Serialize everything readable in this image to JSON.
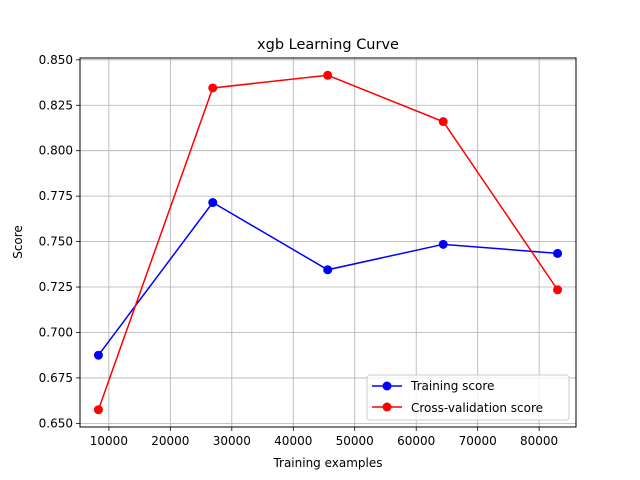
{
  "chart_data": {
    "type": "line",
    "title": "xgb Learning Curve",
    "xlabel": "Training examples",
    "ylabel": "Score",
    "xlim": [
      5300,
      86000
    ],
    "ylim": [
      0.648,
      0.851
    ],
    "x": [
      8300,
      26900,
      45600,
      64400,
      83000
    ],
    "xticks": [
      10000,
      20000,
      30000,
      40000,
      50000,
      60000,
      70000,
      80000
    ],
    "yticks": [
      0.65,
      0.675,
      0.7,
      0.725,
      0.75,
      0.775,
      0.8,
      0.825,
      0.85
    ],
    "grid": true,
    "legend_position": "lower-right",
    "series": [
      {
        "name": "Training score",
        "color": "#0000ff",
        "values": [
          0.6875,
          0.7715,
          0.7345,
          0.7485,
          0.7435
        ]
      },
      {
        "name": "Cross-validation score",
        "color": "#ff0000",
        "values": [
          0.6575,
          0.8345,
          0.8415,
          0.816,
          0.7235
        ]
      }
    ]
  }
}
